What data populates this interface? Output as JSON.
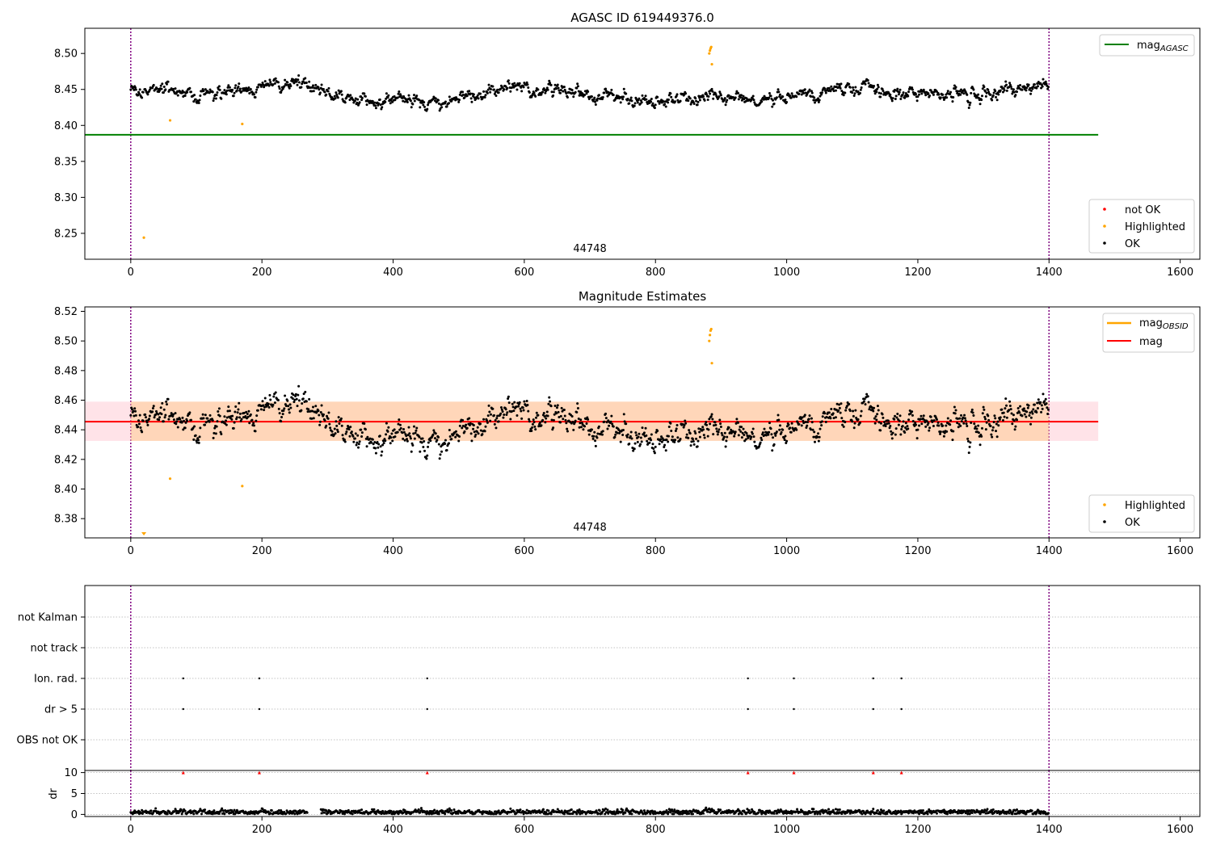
{
  "chart_data": [
    {
      "type": "scatter",
      "title": "AGASC ID 619449376.0",
      "xlim": [
        -70,
        1630
      ],
      "ylim": [
        8.214,
        8.535
      ],
      "xticks": [
        0,
        200,
        400,
        600,
        800,
        1000,
        1200,
        1400,
        1600
      ],
      "xtick_labels": [
        "0",
        "200",
        "400",
        "600",
        "800",
        "1000",
        "1200",
        "1400",
        "1600"
      ],
      "yticks": [
        8.25,
        8.3,
        8.35,
        8.4,
        8.45,
        8.5
      ],
      "ytick_labels": [
        "8.25",
        "8.30",
        "8.35",
        "8.40",
        "8.45",
        "8.50"
      ],
      "annotation": "44748",
      "annotation_x": 700,
      "vlines": [
        0,
        1400
      ],
      "hline_value": 8.387,
      "hline_xmax": 1475,
      "line_legend": {
        "label": "mag",
        "sub": "AGASC",
        "color": "#008000",
        "placement": "upper right"
      },
      "marker_legend": {
        "placement": "lower right",
        "entries": [
          {
            "label": "not OK",
            "color": "#ff0000"
          },
          {
            "label": "Highlighted",
            "color": "#ffa500"
          },
          {
            "label": "OK",
            "color": "#000000"
          }
        ]
      },
      "highlighted": [
        [
          20,
          8.244
        ],
        [
          60,
          8.407
        ],
        [
          170,
          8.402
        ],
        [
          882,
          8.5
        ],
        [
          883,
          8.504
        ],
        [
          884,
          8.507
        ],
        [
          885,
          8.509
        ],
        [
          886,
          8.485
        ]
      ],
      "ok_series": {
        "n": 1400,
        "base": 8.445,
        "range": [
          8.41,
          8.48
        ]
      }
    },
    {
      "type": "scatter",
      "title": "Magnitude Estimates",
      "xlim": [
        -70,
        1630
      ],
      "ylim": [
        8.367,
        8.523
      ],
      "xticks": [
        0,
        200,
        400,
        600,
        800,
        1000,
        1200,
        1400,
        1600
      ],
      "xtick_labels": [
        "0",
        "200",
        "400",
        "600",
        "800",
        "1000",
        "1200",
        "1400",
        "1600"
      ],
      "yticks": [
        8.38,
        8.4,
        8.42,
        8.44,
        8.46,
        8.48,
        8.5,
        8.52
      ],
      "ytick_labels": [
        "8.38",
        "8.40",
        "8.42",
        "8.44",
        "8.46",
        "8.48",
        "8.50",
        "8.52"
      ],
      "annotation": "44748",
      "annotation_x": 700,
      "vlines": [
        0,
        1400
      ],
      "mag_value": 8.4455,
      "mag_band": [
        8.4325,
        8.459
      ],
      "band_xmax": 1475,
      "line_legend": {
        "placement": "upper right",
        "entries": [
          {
            "label": "mag",
            "sub": "OBSID",
            "color": "#ffa500"
          },
          {
            "label": "mag",
            "sub": "",
            "color": "#ff0000"
          }
        ]
      },
      "marker_legend": {
        "placement": "lower right",
        "entries": [
          {
            "label": "Highlighted",
            "color": "#ffa500"
          },
          {
            "label": "OK",
            "color": "#000000"
          }
        ]
      },
      "highlighted": [
        [
          20,
          8.37
        ],
        [
          60,
          8.407
        ],
        [
          170,
          8.402
        ],
        [
          882,
          8.5
        ],
        [
          883,
          8.504
        ],
        [
          884,
          8.507
        ],
        [
          885,
          8.508
        ],
        [
          886,
          8.485
        ]
      ],
      "ok_series": {
        "n": 1400,
        "base": 8.445,
        "range": [
          8.41,
          8.483
        ]
      }
    },
    {
      "type": "scatter",
      "title": "",
      "xlim": [
        -70,
        1630
      ],
      "categories": [
        "not Kalman",
        "not track",
        "Ion. rad.",
        "dr > 5",
        "OBS not OK"
      ],
      "vlines": [
        0,
        1400
      ],
      "flag_points": {
        "Ion. rad.": [
          80,
          196,
          452,
          941,
          1011,
          1132,
          1175
        ],
        "dr > 5": [
          80,
          196,
          452,
          941,
          1011,
          1132,
          1175
        ]
      }
    },
    {
      "type": "scatter",
      "title": "",
      "ylabel": "dr",
      "xlim": [
        -70,
        1630
      ],
      "ylim": [
        -0.5,
        10.5
      ],
      "xticks": [
        0,
        200,
        400,
        600,
        800,
        1000,
        1200,
        1400,
        1600
      ],
      "xtick_labels": [
        "0",
        "200",
        "400",
        "600",
        "800",
        "1000",
        "1200",
        "1400",
        "1600"
      ],
      "yticks": [
        0,
        5,
        10
      ],
      "ytick_labels": [
        "0",
        "5",
        "10"
      ],
      "vlines": [
        0,
        1400
      ],
      "clipped_points_x": [
        80,
        196,
        452,
        941,
        1011,
        1132,
        1175
      ],
      "clipped_value": 10,
      "dr_series": {
        "n": 1400,
        "range": [
          0.1,
          1.6
        ],
        "gap": [
          270,
          290
        ]
      }
    }
  ]
}
